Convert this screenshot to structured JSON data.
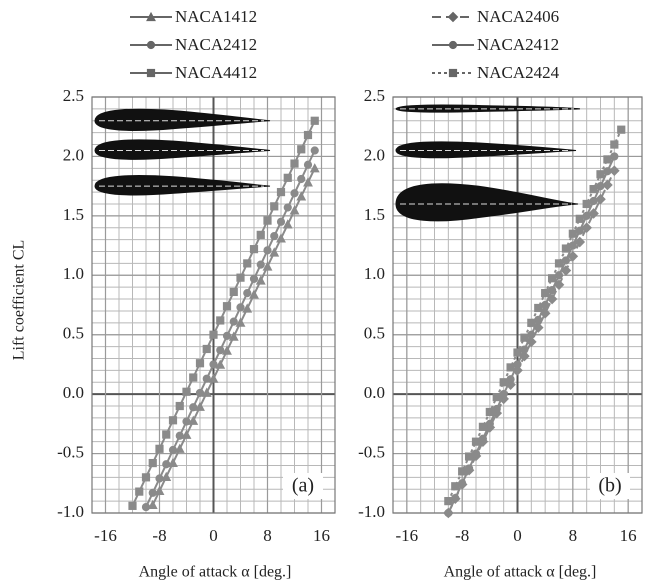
{
  "chart_data": [
    {
      "type": "line",
      "panel_label": "(a)",
      "y_label": "Lift coefficient CL",
      "x_label": "Angle of attack  α [deg.]",
      "x": [
        -13,
        -12,
        -11,
        -10,
        -9,
        -8,
        -7,
        -6,
        -5,
        -4,
        -3,
        -2,
        -1,
        0,
        1,
        2,
        3,
        4,
        5,
        6,
        7,
        8,
        9,
        10,
        11,
        12,
        13,
        14,
        15
      ],
      "series": [
        {
          "name": "NACA1412",
          "color": "#8a8a8a",
          "marker": "triangle",
          "line_style": "solid",
          "values": [
            null,
            null,
            null,
            null,
            -0.932,
            -0.814,
            -0.696,
            -0.578,
            -0.46,
            -0.342,
            -0.224,
            -0.106,
            0.012,
            0.13,
            0.248,
            0.366,
            0.484,
            0.602,
            0.72,
            0.838,
            0.956,
            1.074,
            1.192,
            1.31,
            1.428,
            1.546,
            1.664,
            1.782,
            1.9
          ]
        },
        {
          "name": "NACA2412",
          "color": "#8a8a8a",
          "marker": "circle",
          "line_style": "solid",
          "values": [
            null,
            null,
            null,
            -0.95,
            -0.83,
            -0.71,
            -0.59,
            -0.47,
            -0.35,
            -0.23,
            -0.11,
            0.01,
            0.13,
            0.25,
            0.37,
            0.49,
            0.61,
            0.73,
            0.85,
            0.97,
            1.09,
            1.21,
            1.33,
            1.45,
            1.57,
            1.69,
            1.81,
            1.93,
            2.05
          ]
        },
        {
          "name": "NACA4412",
          "color": "#8a8a8a",
          "marker": "square",
          "line_style": "solid",
          "values": [
            null,
            -0.94,
            -0.82,
            -0.7,
            -0.58,
            -0.46,
            -0.34,
            -0.22,
            -0.1,
            0.02,
            0.14,
            0.26,
            0.38,
            0.5,
            0.62,
            0.74,
            0.86,
            0.98,
            1.1,
            1.22,
            1.34,
            1.46,
            1.58,
            1.7,
            1.82,
            1.94,
            2.06,
            2.18,
            2.3
          ]
        }
      ],
      "xlim": [
        -18,
        18
      ],
      "xticks": [
        -16,
        -8,
        0,
        8,
        16
      ],
      "ylim": [
        -1.0,
        2.5
      ],
      "yticks": [
        {
          "value": -1.0,
          "label": "-1.0"
        },
        -0.5,
        {
          "value": 0.0,
          "label": "0.0"
        },
        0.5,
        {
          "value": 1.0,
          "label": "1.0"
        },
        1.5,
        {
          "value": 2.0,
          "label": "2.0"
        },
        2.5
      ],
      "grid": true,
      "minor_grid": {
        "x_step": 2,
        "y_step": 0.1
      },
      "legend": "top"
    },
    {
      "type": "line",
      "panel_label": "(b)",
      "x_label": "Angle of attack  α [deg.]",
      "x": [
        -10,
        -9,
        -8,
        -7,
        -6,
        -5,
        -4,
        -3,
        -2,
        -1,
        0,
        1,
        2,
        3,
        4,
        5,
        6,
        7,
        8,
        9,
        10,
        11,
        12,
        13,
        14,
        15
      ],
      "series": [
        {
          "name": "NACA2406",
          "color": "#8a8a8a",
          "marker": "diamond",
          "line_style": "dashed",
          "values": [
            -1.0,
            -0.88,
            -0.76,
            -0.64,
            -0.52,
            -0.4,
            -0.28,
            -0.16,
            -0.04,
            0.08,
            0.2,
            0.32,
            0.44,
            0.56,
            0.68,
            0.8,
            0.92,
            1.04,
            1.16,
            1.28,
            1.4,
            1.52,
            1.64,
            1.76,
            1.88,
            null
          ]
        },
        {
          "name": "NACA2412",
          "color": "#8a8a8a",
          "marker": "circle",
          "line_style": "solid",
          "values": [
            -1.0,
            -0.875,
            -0.75,
            -0.625,
            -0.5,
            -0.375,
            -0.25,
            -0.125,
            0,
            0.125,
            0.25,
            0.375,
            0.5,
            0.625,
            0.75,
            0.875,
            1.0,
            1.125,
            1.25,
            1.375,
            1.5,
            1.625,
            1.75,
            1.875,
            2.0,
            null
          ]
        },
        {
          "name": "NACA2424",
          "color": "#8a8a8a",
          "marker": "square",
          "line_style": "dotted",
          "values": [
            -0.9,
            -0.775,
            -0.65,
            -0.525,
            -0.4,
            -0.275,
            -0.15,
            -0.025,
            0.1,
            0.225,
            0.35,
            0.475,
            0.6,
            0.725,
            0.85,
            0.975,
            1.1,
            1.225,
            1.35,
            1.475,
            1.6,
            1.725,
            1.85,
            1.975,
            2.1,
            2.225
          ]
        }
      ],
      "xlim": [
        -18,
        18
      ],
      "xticks": [
        -16,
        -8,
        0,
        8,
        16
      ],
      "ylim": [
        -1.0,
        2.5
      ],
      "yticks": [
        {
          "value": -1.0,
          "label": "-1.0"
        },
        -0.5,
        {
          "value": 0.0,
          "label": "0.0"
        },
        0.5,
        {
          "value": 1.0,
          "label": "1.0"
        },
        1.5,
        {
          "value": 2.0,
          "label": "2.0"
        },
        2.5
      ],
      "grid": true,
      "minor_grid": {
        "x_step": 2,
        "y_step": 0.1
      },
      "legend": "top"
    }
  ]
}
